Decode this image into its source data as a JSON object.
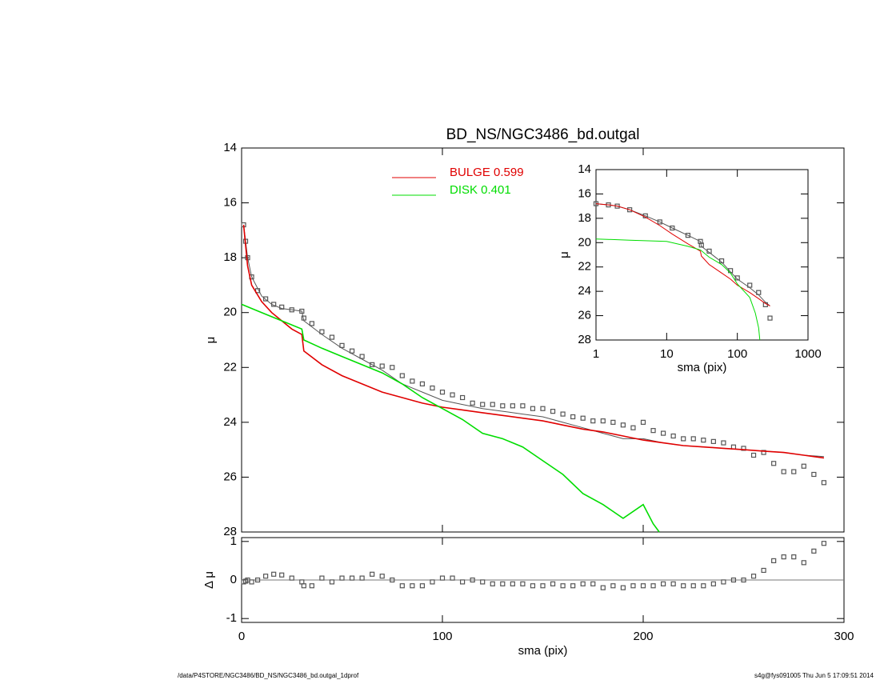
{
  "chart_data": [
    {
      "type": "scatter",
      "title": "BD_NS/NGC3486_bd.outgal",
      "ylabel": "μ",
      "xlim": [
        0,
        300
      ],
      "xticks": [
        0,
        100,
        200,
        300
      ],
      "xtick_labels": false,
      "ylim": [
        28,
        14
      ],
      "yticks": [
        14,
        16,
        18,
        20,
        22,
        24,
        26,
        28
      ],
      "legend": "top-center",
      "series": [
        {
          "style": "points",
          "color": "#555555",
          "x": [
            1,
            2,
            3,
            5,
            8,
            12,
            16,
            20,
            25,
            30,
            31,
            35,
            40,
            45,
            50,
            55,
            60,
            65,
            70,
            75,
            80,
            85,
            90,
            95,
            100,
            105,
            110,
            115,
            120,
            125,
            130,
            135,
            140,
            145,
            150,
            155,
            160,
            165,
            170,
            175,
            180,
            185,
            190,
            195,
            200,
            205,
            210,
            215,
            220,
            225,
            230,
            235,
            240,
            245,
            250,
            255,
            260,
            265,
            270,
            275,
            280,
            285,
            290
          ],
          "values": [
            16.8,
            17.4,
            18.0,
            18.7,
            19.2,
            19.5,
            19.7,
            19.8,
            19.9,
            19.95,
            20.2,
            20.4,
            20.7,
            20.9,
            21.2,
            21.4,
            21.6,
            21.9,
            21.95,
            22.0,
            22.3,
            22.5,
            22.6,
            22.75,
            22.9,
            23.0,
            23.1,
            23.3,
            23.35,
            23.35,
            23.4,
            23.4,
            23.4,
            23.5,
            23.5,
            23.6,
            23.7,
            23.8,
            23.85,
            23.95,
            23.95,
            24.0,
            24.1,
            24.2,
            24.0,
            24.3,
            24.4,
            24.5,
            24.6,
            24.6,
            24.65,
            24.7,
            24.75,
            24.9,
            24.95,
            25.2,
            25.1,
            25.5,
            25.8,
            25.8,
            25.6,
            25.9,
            26.2
          ]
        },
        {
          "style": "line",
          "color": "#555555",
          "x": [
            1,
            3,
            5,
            10,
            15,
            20,
            25,
            30,
            31,
            40,
            50,
            60,
            70,
            80,
            90,
            100,
            110,
            120,
            130,
            140,
            150,
            160,
            170,
            180,
            190,
            200,
            210,
            220,
            230,
            240,
            250,
            260,
            270,
            280,
            290
          ],
          "values": [
            16.8,
            18.0,
            18.7,
            19.4,
            19.7,
            19.85,
            19.9,
            19.95,
            20.3,
            20.8,
            21.3,
            21.7,
            22.1,
            22.6,
            22.9,
            23.2,
            23.35,
            23.5,
            23.6,
            23.7,
            23.8,
            24.0,
            24.2,
            24.4,
            24.6,
            24.6,
            24.75,
            24.85,
            24.9,
            24.95,
            25.0,
            25.05,
            25.1,
            25.2,
            25.25
          ]
        },
        {
          "style": "line",
          "name": "BULGE  0.599",
          "color": "#e00000",
          "x": [
            1,
            3,
            5,
            10,
            15,
            20,
            25,
            30,
            31,
            40,
            50,
            60,
            70,
            80,
            90,
            100,
            110,
            120,
            130,
            140,
            150,
            160,
            170,
            180,
            190,
            200,
            210,
            220,
            230,
            240,
            250,
            260,
            270,
            280,
            290
          ],
          "values": [
            16.8,
            18.3,
            19.0,
            19.6,
            20.0,
            20.3,
            20.6,
            20.8,
            21.4,
            21.9,
            22.3,
            22.6,
            22.9,
            23.1,
            23.3,
            23.45,
            23.55,
            23.65,
            23.75,
            23.85,
            23.95,
            24.1,
            24.25,
            24.35,
            24.5,
            24.65,
            24.75,
            24.85,
            24.9,
            24.95,
            25.0,
            25.05,
            25.1,
            25.2,
            25.3
          ]
        },
        {
          "style": "line",
          "name": "DISK  0.401",
          "color": "#00dd00",
          "x": [
            0,
            10,
            20,
            30,
            31,
            40,
            50,
            60,
            70,
            80,
            90,
            100,
            110,
            120,
            130,
            140,
            150,
            160,
            170,
            180,
            190,
            200,
            205,
            208
          ],
          "values": [
            19.7,
            20.0,
            20.3,
            20.6,
            21.0,
            21.3,
            21.6,
            21.9,
            22.2,
            22.6,
            23.1,
            23.5,
            23.9,
            24.4,
            24.6,
            24.9,
            25.4,
            25.9,
            26.6,
            27.0,
            27.5,
            27.0,
            27.7,
            28.0
          ]
        }
      ]
    },
    {
      "type": "scatter",
      "xlabel": "sma (pix)",
      "ylabel": "μ",
      "xlog": true,
      "xlim": [
        1,
        1000
      ],
      "xticks": [
        1,
        10,
        100,
        1000
      ],
      "ylim": [
        28,
        14
      ],
      "yticks": [
        14,
        16,
        18,
        20,
        22,
        24,
        26,
        28
      ],
      "series": [
        {
          "style": "points",
          "color": "#555555",
          "x": [
            1,
            1.5,
            2,
            3,
            5,
            8,
            12,
            20,
            30,
            31,
            40,
            60,
            80,
            100,
            150,
            200,
            250,
            290
          ],
          "values": [
            16.8,
            16.9,
            17.0,
            17.3,
            17.8,
            18.3,
            18.8,
            19.4,
            19.9,
            20.2,
            20.7,
            21.5,
            22.3,
            22.9,
            23.5,
            24.1,
            25.1,
            26.2
          ]
        },
        {
          "style": "line",
          "color": "#555555",
          "x": [
            1,
            1.5,
            2,
            3,
            5,
            8,
            12,
            20,
            30,
            31,
            40,
            60,
            80,
            100,
            150,
            200,
            250,
            290
          ],
          "values": [
            16.8,
            16.9,
            17.0,
            17.3,
            17.8,
            18.3,
            18.8,
            19.4,
            19.9,
            20.3,
            20.8,
            21.6,
            22.4,
            23.0,
            23.7,
            24.3,
            24.9,
            25.2
          ]
        },
        {
          "style": "line",
          "color": "#e00000",
          "x": [
            1,
            1.5,
            2,
            3,
            5,
            8,
            12,
            20,
            30,
            31,
            40,
            60,
            80,
            100,
            150,
            200,
            250,
            290
          ],
          "values": [
            16.8,
            16.9,
            17.0,
            17.3,
            17.9,
            18.6,
            19.3,
            20.1,
            20.7,
            21.1,
            21.8,
            22.5,
            23.0,
            23.5,
            24.1,
            24.6,
            25.0,
            25.2
          ]
        },
        {
          "style": "line",
          "color": "#00dd00",
          "x": [
            1,
            3,
            10,
            20,
            30,
            40,
            60,
            80,
            100,
            150,
            180,
            200,
            208
          ],
          "values": [
            19.7,
            19.8,
            19.9,
            20.3,
            20.6,
            21.2,
            21.8,
            22.5,
            23.4,
            24.5,
            25.8,
            27.0,
            28.0
          ]
        }
      ]
    },
    {
      "type": "scatter",
      "xlabel": "sma (pix)",
      "ylabel": "Δ μ",
      "zero_line": true,
      "xlim": [
        0,
        300
      ],
      "xticks": [
        0,
        100,
        200,
        300
      ],
      "ylim": [
        -1.1,
        1.1
      ],
      "yticks": [
        -1,
        0,
        1
      ],
      "series": [
        {
          "style": "points",
          "color": "#555555",
          "x": [
            1,
            2,
            3,
            5,
            8,
            12,
            16,
            20,
            25,
            30,
            31,
            35,
            40,
            45,
            50,
            55,
            60,
            65,
            70,
            75,
            80,
            85,
            90,
            95,
            100,
            105,
            110,
            115,
            120,
            125,
            130,
            135,
            140,
            145,
            150,
            155,
            160,
            165,
            170,
            175,
            180,
            185,
            190,
            195,
            200,
            205,
            210,
            215,
            220,
            225,
            230,
            235,
            240,
            245,
            250,
            255,
            260,
            265,
            270,
            275,
            280,
            285,
            290
          ],
          "values": [
            -0.05,
            -0.03,
            0.0,
            -0.05,
            0.0,
            0.1,
            0.15,
            0.13,
            0.05,
            -0.05,
            -0.15,
            -0.15,
            0.05,
            -0.05,
            0.05,
            0.05,
            0.05,
            0.15,
            0.1,
            0.0,
            -0.15,
            -0.15,
            -0.15,
            -0.05,
            0.05,
            0.05,
            -0.05,
            0.0,
            -0.05,
            -0.1,
            -0.1,
            -0.1,
            -0.1,
            -0.15,
            -0.15,
            -0.1,
            -0.15,
            -0.15,
            -0.1,
            -0.1,
            -0.2,
            -0.15,
            -0.2,
            -0.15,
            -0.15,
            -0.15,
            -0.1,
            -0.1,
            -0.15,
            -0.15,
            -0.15,
            -0.1,
            -0.05,
            0.0,
            0.0,
            0.1,
            0.25,
            0.5,
            0.6,
            0.6,
            0.45,
            0.75,
            0.95
          ]
        }
      ]
    }
  ],
  "footer_left": "/data/P4STORE/NGC3486/BD_NS/NGC3486_bd.outgal_1dprof",
  "footer_right": "s4g@fys091005  Thu Jun  5 17:09:51 2014"
}
